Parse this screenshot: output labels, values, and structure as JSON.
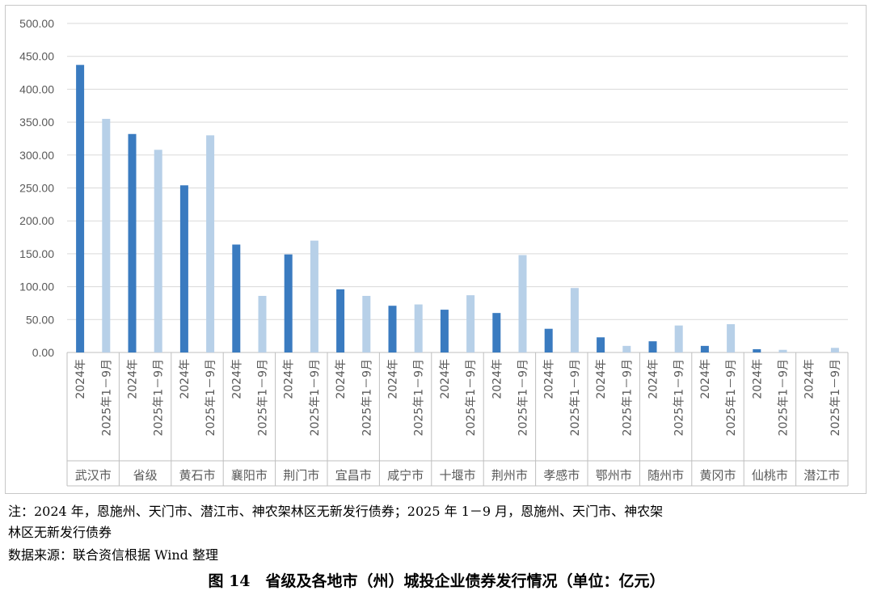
{
  "chart_data": {
    "type": "bar",
    "y_ticks": [
      "0.00",
      "50.00",
      "100.00",
      "150.00",
      "200.00",
      "250.00",
      "300.00",
      "350.00",
      "400.00",
      "450.00",
      "500.00"
    ],
    "ylim": [
      0,
      500
    ],
    "grid": true,
    "series_colors": [
      "#3a7bc0",
      "#b7d0e8"
    ],
    "groups": [
      {
        "name": "武汉市",
        "sub_labels": [
          "2024年",
          "2025年1－9月"
        ],
        "values": [
          437,
          355
        ]
      },
      {
        "name": "省级",
        "sub_labels": [
          "2024年",
          "2025年1－9月"
        ],
        "values": [
          332,
          308
        ]
      },
      {
        "name": "黄石市",
        "sub_labels": [
          "2024年",
          "2025年1－9月"
        ],
        "values": [
          254,
          330
        ]
      },
      {
        "name": "襄阳市",
        "sub_labels": [
          "2024年",
          "2025年1－9月"
        ],
        "values": [
          164,
          86
        ]
      },
      {
        "name": "荆门市",
        "sub_labels": [
          "2024年",
          "2025年1－9月"
        ],
        "values": [
          149,
          170
        ]
      },
      {
        "name": "宜昌市",
        "sub_labels": [
          "2024年",
          "2025年1－9月"
        ],
        "values": [
          96,
          86
        ]
      },
      {
        "name": "咸宁市",
        "sub_labels": [
          "2024年",
          "2025年1－9月"
        ],
        "values": [
          71,
          73
        ]
      },
      {
        "name": "十堰市",
        "sub_labels": [
          "2024年",
          "2025年1－9月"
        ],
        "values": [
          65,
          87
        ]
      },
      {
        "name": "荆州市",
        "sub_labels": [
          "2024年",
          "2025年1－9月"
        ],
        "values": [
          60,
          148
        ]
      },
      {
        "name": "孝感市",
        "sub_labels": [
          "2024年",
          "2025年1－9月"
        ],
        "values": [
          36,
          98
        ]
      },
      {
        "name": "鄂州市",
        "sub_labels": [
          "2024年",
          "2025年1－9月"
        ],
        "values": [
          23,
          10
        ]
      },
      {
        "name": "随州市",
        "sub_labels": [
          "2024年",
          "2025年1－9月"
        ],
        "values": [
          17,
          41
        ]
      },
      {
        "name": "黄冈市",
        "sub_labels": [
          "2024年",
          "2025年1－9月"
        ],
        "values": [
          10,
          43
        ]
      },
      {
        "name": "仙桃市",
        "sub_labels": [
          "2024年",
          "2025年1－9月"
        ],
        "values": [
          5,
          4
        ]
      },
      {
        "name": "潜江市",
        "sub_labels": [
          "2024年",
          "2025年1－9月"
        ],
        "values": [
          0,
          7
        ]
      }
    ]
  },
  "notes": {
    "line1": "注：2024 年，恩施州、天门市、潜江市、神农架林区无新发行债券；2025 年 1－9 月，恩施州、天门市、神农架",
    "line2": "林区无新发行债券",
    "source": "数据来源：联合资信根据 Wind 整理"
  },
  "caption": "图 14　省级及各地市（州）城投企业债券发行情况（单位：亿元）"
}
